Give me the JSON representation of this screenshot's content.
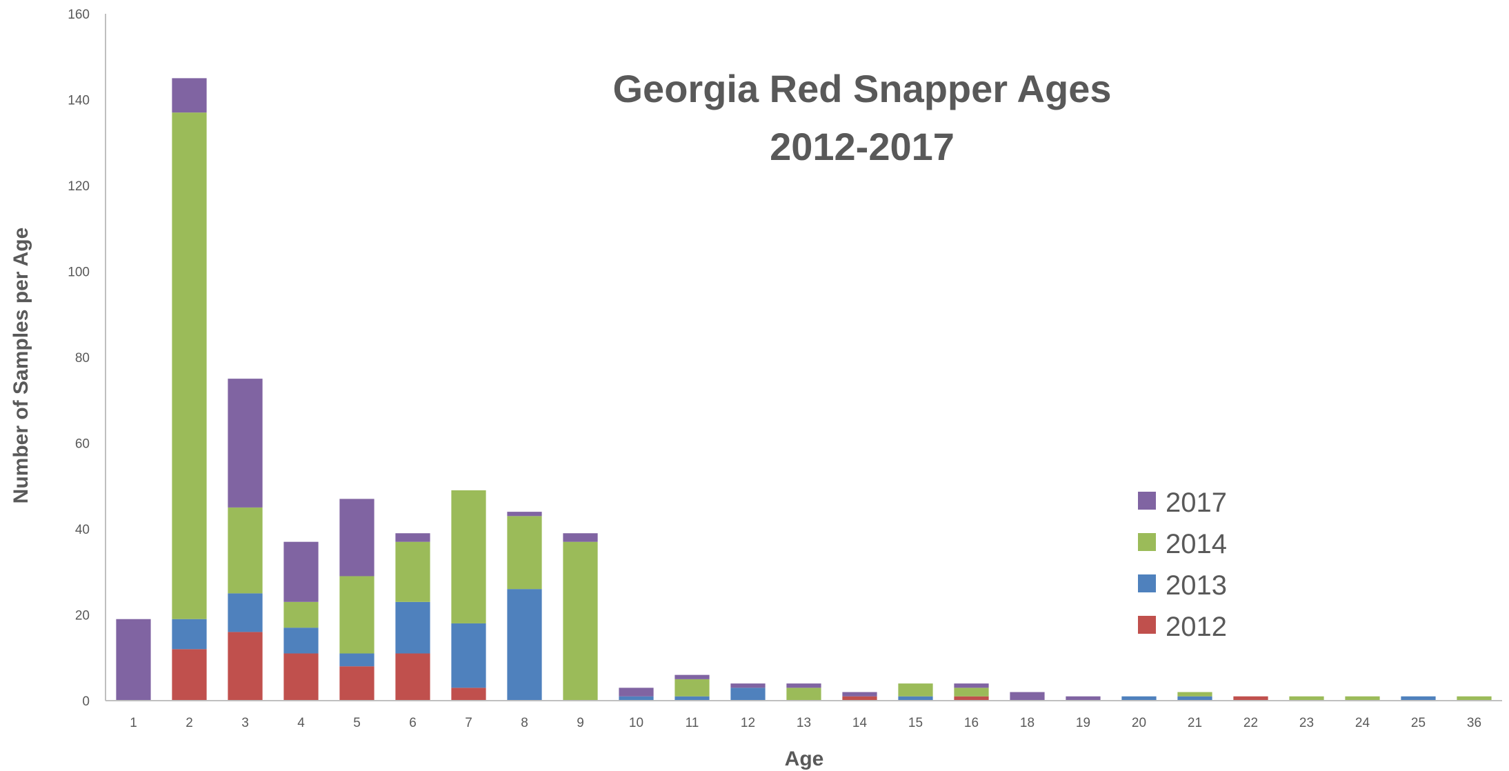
{
  "chart_data": {
    "type": "bar",
    "stacked": true,
    "title": "Georgia Red Snapper Ages",
    "subtitle": "2012-2017",
    "xlabel": "Age",
    "ylabel": "Number of Samples per Age",
    "ylim": [
      0,
      160
    ],
    "yticks": [
      "0",
      "20",
      "40",
      "60",
      "80",
      "100",
      "120",
      "140",
      "160"
    ],
    "grid": false,
    "legend_position": "right",
    "categories": [
      "1",
      "2",
      "3",
      "4",
      "5",
      "6",
      "7",
      "8",
      "9",
      "10",
      "11",
      "12",
      "13",
      "14",
      "15",
      "16",
      "18",
      "19",
      "20",
      "21",
      "22",
      "23",
      "24",
      "25",
      "36"
    ],
    "series": [
      {
        "name": "2012",
        "color": "#c0504d",
        "values": [
          0,
          12,
          16,
          11,
          8,
          11,
          3,
          0,
          0,
          0,
          0,
          0,
          0,
          1,
          0,
          1,
          0,
          0,
          0,
          0,
          1,
          0,
          0,
          0,
          0
        ]
      },
      {
        "name": "2013",
        "color": "#4f81bd",
        "values": [
          0,
          7,
          9,
          6,
          3,
          12,
          15,
          26,
          0,
          1,
          1,
          3,
          0,
          0,
          1,
          0,
          0,
          0,
          1,
          1,
          0,
          0,
          0,
          1,
          0
        ]
      },
      {
        "name": "2014",
        "color": "#9bbb59",
        "values": [
          0,
          118,
          20,
          6,
          18,
          14,
          31,
          17,
          37,
          0,
          4,
          0,
          3,
          0,
          3,
          2,
          0,
          0,
          0,
          1,
          0,
          1,
          1,
          0,
          1
        ]
      },
      {
        "name": "2017",
        "color": "#8064a2",
        "values": [
          19,
          8,
          30,
          14,
          18,
          2,
          0,
          1,
          2,
          2,
          1,
          1,
          1,
          1,
          0,
          1,
          2,
          1,
          0,
          0,
          0,
          0,
          0,
          0,
          0
        ]
      }
    ],
    "legend_order": [
      "2017",
      "2014",
      "2013",
      "2012"
    ]
  }
}
